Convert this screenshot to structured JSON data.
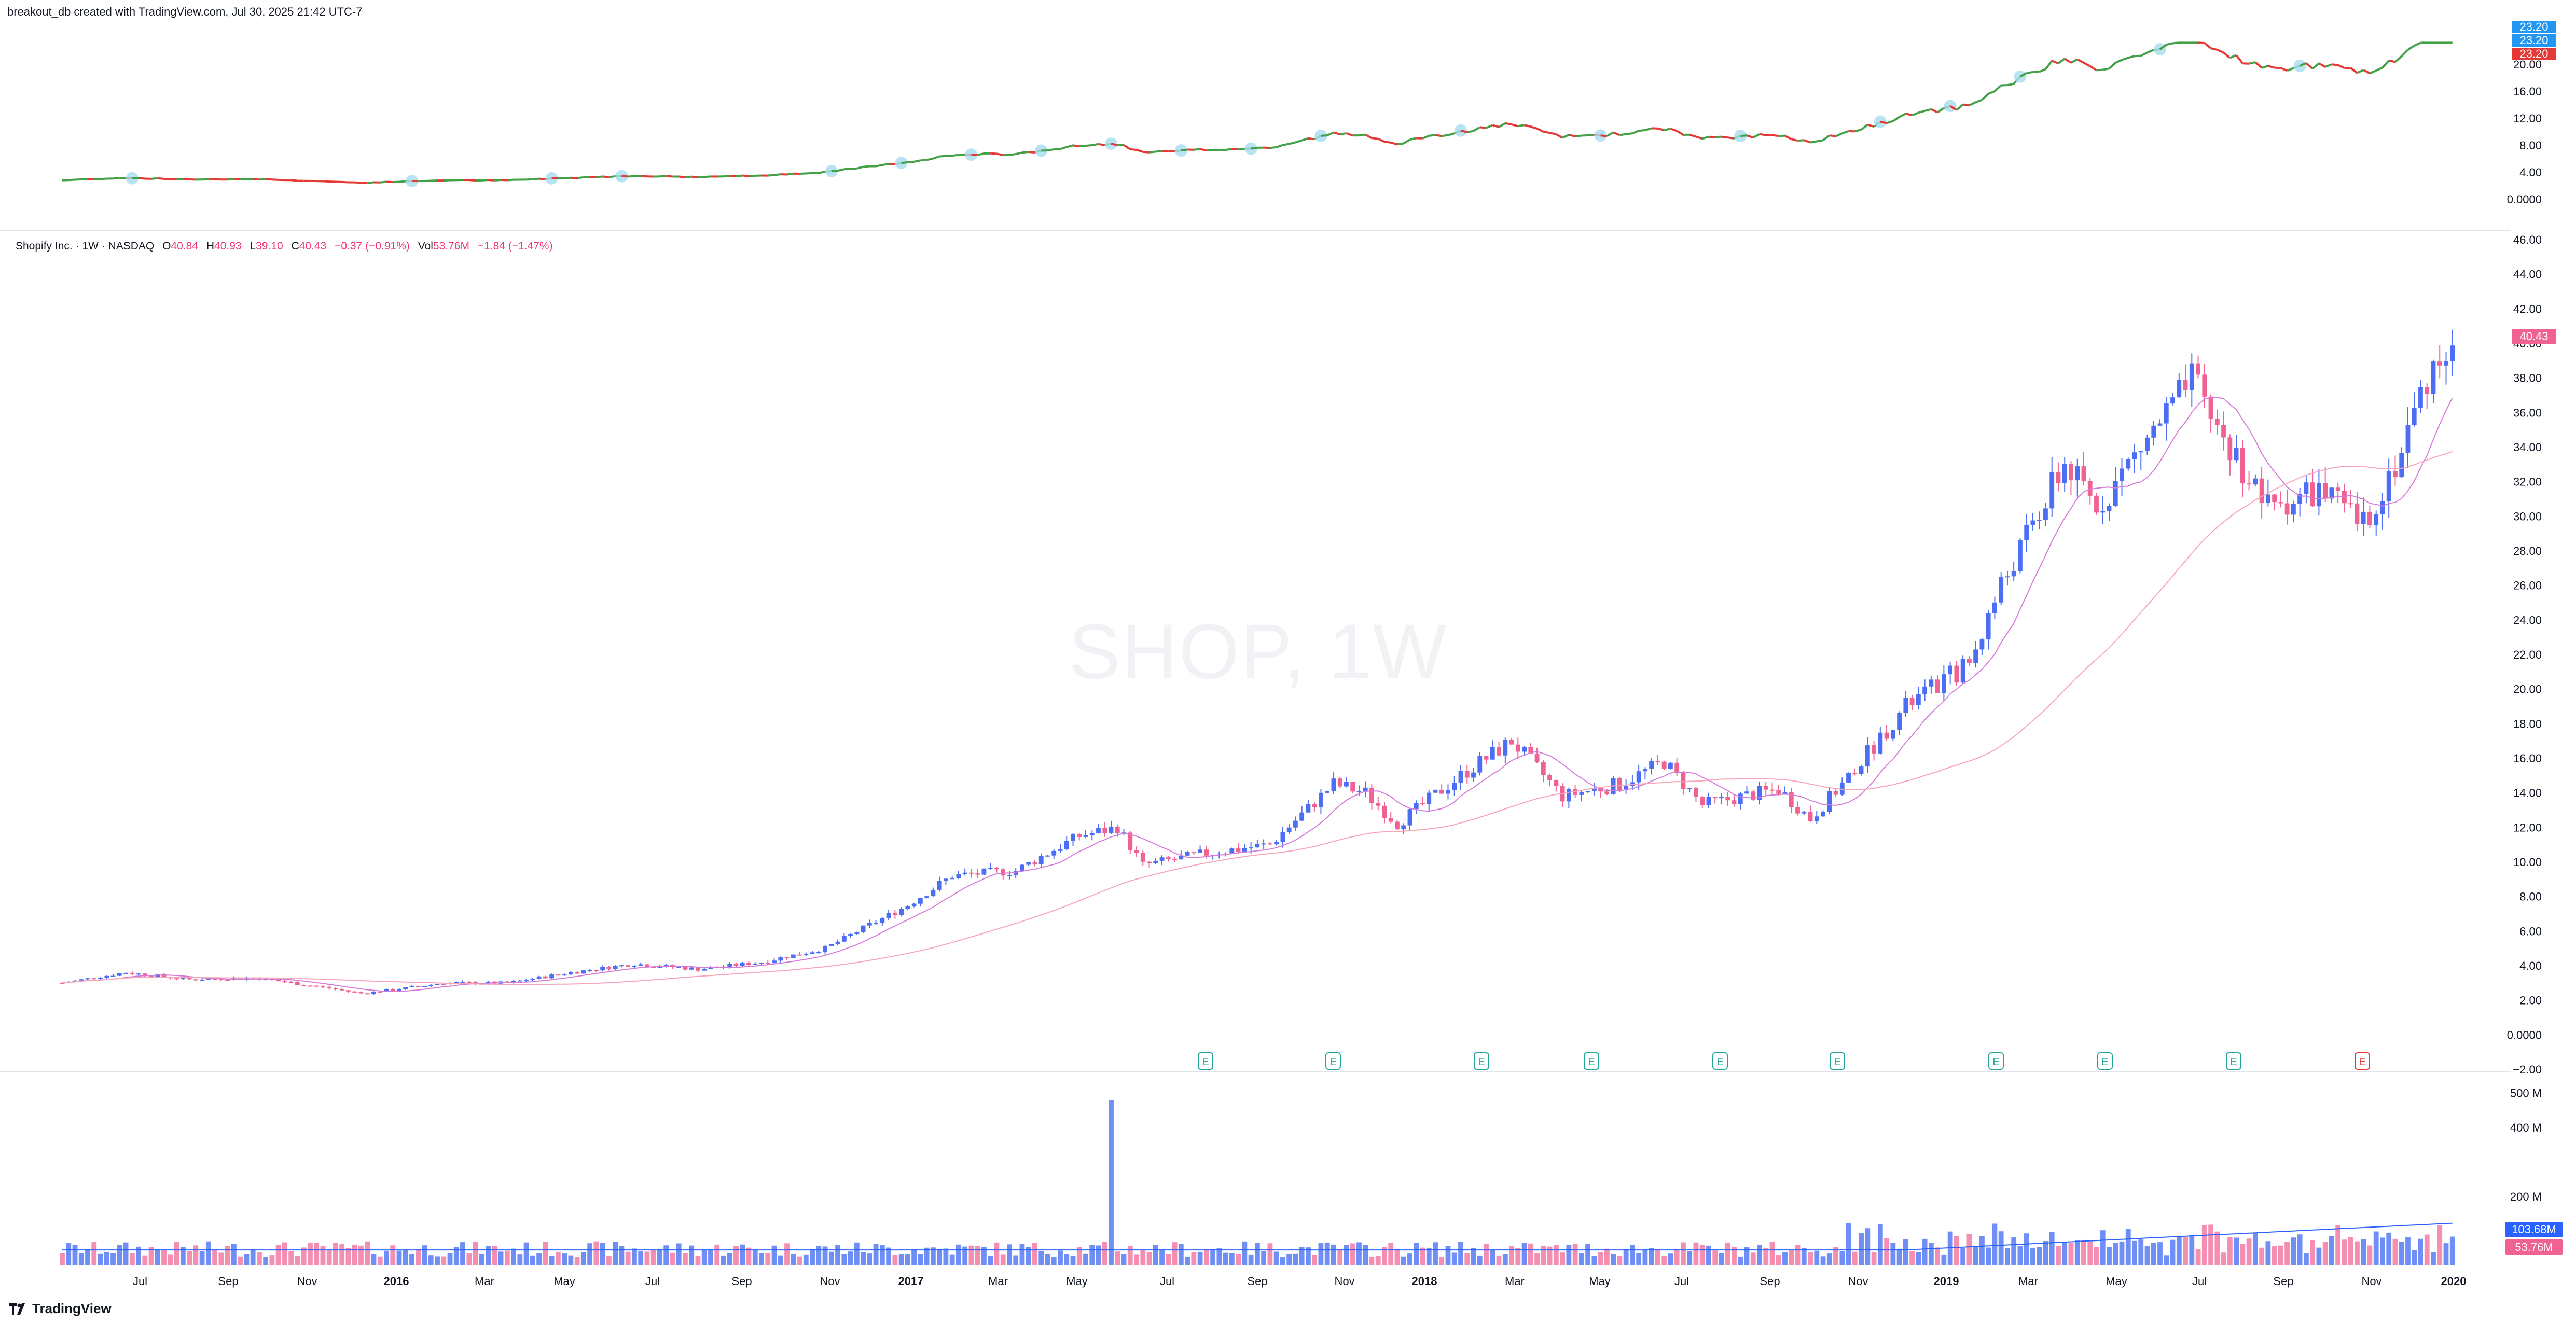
{
  "header": {
    "creator_line": "breakout_db created with TradingView.com, Jul 30, 2025 21:42 UTC-7"
  },
  "legend": {
    "symbol": "Shopify Inc. · 1W · NASDAQ",
    "open_label": "O",
    "open": "40.84",
    "high_label": "H",
    "high": "40.93",
    "low_label": "L",
    "low": "39.10",
    "close_label": "C",
    "close": "40.43",
    "change": "−0.37 (−0.91%)",
    "vol_label": "Vol",
    "vol": "53.76M",
    "vol_change": "−1.84 (−1.47%)"
  },
  "watermark": "SHOP, 1W",
  "indicator_tags": [
    "23.20",
    "23.20",
    "23.20"
  ],
  "price_tag": "40.43",
  "volume_tags": [
    "103.68M",
    "53.76M"
  ],
  "footer": {
    "brand": "TradingView"
  },
  "colors": {
    "up": "#4c6ef5",
    "down": "#f06292",
    "ma_fast": "#d67ad8",
    "ma_slow": "#f8a5b6",
    "ind_up": "#43a047",
    "ind_down": "#e53935",
    "dot": "#a8dcf0"
  },
  "chart_data": {
    "type": "candlestick",
    "symbol": "SHOP",
    "interval": "1W",
    "y_ticks": [
      "46.00",
      "44.00",
      "42.00",
      "40.00",
      "38.00",
      "36.00",
      "34.00",
      "32.00",
      "30.00",
      "28.00",
      "26.00",
      "24.00",
      "22.00",
      "20.00",
      "18.00",
      "16.00",
      "14.00",
      "12.00",
      "10.00",
      "8.00",
      "6.00",
      "4.00",
      "2.00",
      "0.0000",
      "−2.00"
    ],
    "ylim": [
      -2,
      46
    ],
    "indicator_y_ticks": [
      "20.00",
      "16.00",
      "12.00",
      "8.00",
      "4.00",
      "0.0000"
    ],
    "indicator_ylim": [
      0,
      24
    ],
    "volume_y_ticks": [
      "500 M",
      "400 M",
      "200 M"
    ],
    "x_ticks": [
      "Jul",
      "Sep",
      "Nov",
      "2016",
      "Mar",
      "May",
      "Jul",
      "Sep",
      "Nov",
      "2017",
      "Mar",
      "May",
      "Jul",
      "Sep",
      "Nov",
      "2018",
      "Mar",
      "May",
      "Jul",
      "Sep",
      "Nov",
      "2019",
      "Mar",
      "May",
      "Jul",
      "Sep",
      "Nov",
      "2020"
    ],
    "earnings_markers": [
      "E",
      "E",
      "E",
      "E",
      "E",
      "E",
      "E",
      "E",
      "E",
      "E"
    ],
    "last": {
      "open": 40.84,
      "high": 40.93,
      "low": 39.1,
      "close": 40.43,
      "volume": "53.76M"
    }
  }
}
